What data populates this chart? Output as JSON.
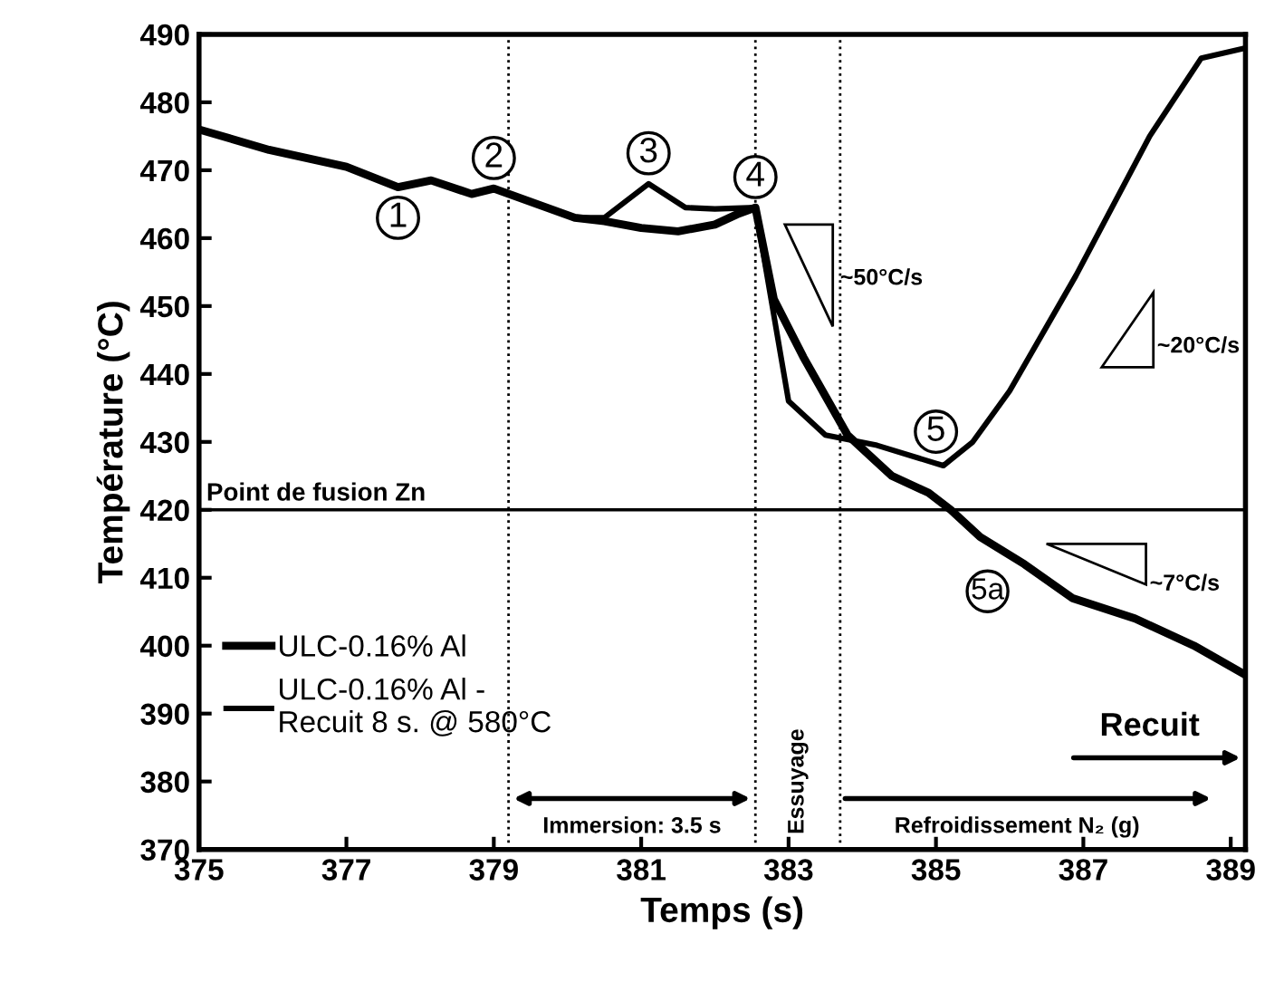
{
  "chart_data": {
    "type": "line",
    "xlabel": "Temps (s)",
    "ylabel": "Température (°C)",
    "series": [
      {
        "name": "ULC-0.16% Al",
        "color": "#000000",
        "x": [
          375,
          375.95,
          377.0,
          377.7,
          378.15,
          378.7,
          379.0,
          380.1,
          380.5,
          381.0,
          381.5,
          382.0,
          382.3,
          382.55,
          382.8,
          383.2,
          383.8,
          384.4,
          384.9,
          385.2,
          385.6,
          386.2,
          386.85,
          387.7,
          388.5,
          389.15
        ],
        "values": [
          476,
          473,
          470.5,
          467.5,
          468.5,
          466.5,
          467.3,
          463,
          462.5,
          461.5,
          461,
          462,
          463.5,
          464.5,
          451,
          442.5,
          431,
          425,
          422.5,
          420,
          416,
          412,
          407,
          404,
          400,
          396
        ]
      },
      {
        "name": "ULC-0.16% Al -\nRecuit 8 s. @ 580°C",
        "color": "#000000",
        "x": [
          375,
          375.95,
          377.0,
          377.7,
          378.15,
          378.7,
          379.0,
          380.1,
          380.5,
          381.1,
          381.6,
          382.0,
          382.55,
          383.0,
          383.5,
          384.2,
          385.1,
          385.5,
          386.0,
          386.9,
          387.9,
          388.6,
          389.2
        ],
        "values": [
          476,
          473,
          470.5,
          467.5,
          468.5,
          466.5,
          467.3,
          463,
          463,
          468,
          464.5,
          464.3,
          464.5,
          436,
          431,
          429.5,
          426.5,
          430,
          437.5,
          454.5,
          475,
          486.5,
          488
        ]
      }
    ],
    "xlim": [
      375,
      389.2
    ],
    "ylim": [
      370,
      490
    ],
    "xticks": [
      375,
      377,
      379,
      381,
      383,
      385,
      387,
      389
    ],
    "yticks": [
      370,
      380,
      390,
      400,
      410,
      420,
      430,
      440,
      450,
      460,
      470,
      480,
      490
    ],
    "ref_lines": [
      {
        "axis": "y",
        "value": 420,
        "label": "Point de fusion Zn",
        "line_style": "solid"
      },
      {
        "axis": "x",
        "value": 379.2,
        "label": null,
        "line_style": "dotted"
      },
      {
        "axis": "x",
        "value": 382.55,
        "label": null,
        "line_style": "dotted"
      },
      {
        "axis": "x",
        "value": 383.7,
        "label": null,
        "line_style": "dotted"
      }
    ],
    "annotations": [
      {
        "text": "1",
        "x": 377.7,
        "y": 467.5
      },
      {
        "text": "2",
        "x": 379.0,
        "y": 467.3
      },
      {
        "text": "3",
        "x": 381.1,
        "y": 468
      },
      {
        "text": "4",
        "x": 382.55,
        "y": 464.5
      },
      {
        "text": "5",
        "x": 385.3,
        "y": 427
      },
      {
        "text": "5a",
        "x": 386.0,
        "y": 413
      },
      "~50°C/s",
      "~20°C/s",
      "~7°C/s",
      "Immersion: 3.5 s",
      "Essuyage",
      "Refroidissement N₂ (g)",
      "Recuit"
    ],
    "legend": "left",
    "grid": false,
    "marker": "none",
    "line_style": "solid"
  }
}
